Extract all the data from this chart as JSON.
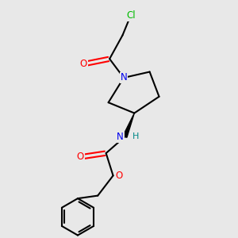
{
  "background_color": "#e8e8e8",
  "bond_color": "#000000",
  "atom_colors": {
    "Cl": "#00bb00",
    "O": "#ff0000",
    "N": "#0000ee",
    "H": "#008888",
    "C": "#000000"
  },
  "figsize": [
    3.0,
    3.0
  ],
  "dpi": 100,
  "xlim": [
    0,
    10
  ],
  "ylim": [
    0,
    10
  ]
}
